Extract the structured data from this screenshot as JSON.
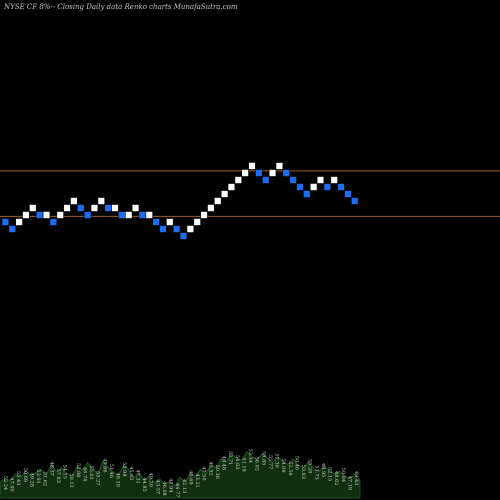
{
  "title": "NYSE CF 8%-- Closing Daily data  Renko  charts MunafaSutra.com",
  "colors": {
    "background": "#000000",
    "up_brick": "#ffffff",
    "down_brick": "#1e6cf0",
    "guide_line": "#a0601c",
    "volume_fill": "#0f2f0f",
    "volume_edge": "#2e6b2e",
    "label": "#d0d0d0"
  },
  "chart_data": {
    "type": "renko",
    "title": "NYSE CF 8%-- Closing Daily data  Renko  charts MunafaSutra.com",
    "brick_count": 52,
    "bricks": [
      {
        "dir": "down",
        "level": -2
      },
      {
        "dir": "down",
        "level": -3
      },
      {
        "dir": "up",
        "level": -2
      },
      {
        "dir": "up",
        "level": -1
      },
      {
        "dir": "up",
        "level": 0
      },
      {
        "dir": "down",
        "level": -1
      },
      {
        "dir": "up",
        "level": -1
      },
      {
        "dir": "down",
        "level": -2
      },
      {
        "dir": "up",
        "level": -1
      },
      {
        "dir": "up",
        "level": 0
      },
      {
        "dir": "up",
        "level": 1
      },
      {
        "dir": "down",
        "level": 0
      },
      {
        "dir": "down",
        "level": -1
      },
      {
        "dir": "up",
        "level": 0
      },
      {
        "dir": "up",
        "level": 1
      },
      {
        "dir": "down",
        "level": 0
      },
      {
        "dir": "up",
        "level": 0
      },
      {
        "dir": "down",
        "level": -1
      },
      {
        "dir": "up",
        "level": -1
      },
      {
        "dir": "up",
        "level": 0
      },
      {
        "dir": "down",
        "level": -1
      },
      {
        "dir": "up",
        "level": -1
      },
      {
        "dir": "down",
        "level": -2
      },
      {
        "dir": "down",
        "level": -3
      },
      {
        "dir": "up",
        "level": -2
      },
      {
        "dir": "down",
        "level": -3
      },
      {
        "dir": "down",
        "level": -4
      },
      {
        "dir": "up",
        "level": -3
      },
      {
        "dir": "up",
        "level": -2
      },
      {
        "dir": "up",
        "level": -1
      },
      {
        "dir": "up",
        "level": 0
      },
      {
        "dir": "up",
        "level": 1
      },
      {
        "dir": "up",
        "level": 2
      },
      {
        "dir": "up",
        "level": 3
      },
      {
        "dir": "up",
        "level": 4
      },
      {
        "dir": "up",
        "level": 5
      },
      {
        "dir": "up",
        "level": 6
      },
      {
        "dir": "down",
        "level": 5
      },
      {
        "dir": "down",
        "level": 4
      },
      {
        "dir": "up",
        "level": 5
      },
      {
        "dir": "up",
        "level": 6
      },
      {
        "dir": "down",
        "level": 5
      },
      {
        "dir": "down",
        "level": 4
      },
      {
        "dir": "down",
        "level": 3
      },
      {
        "dir": "down",
        "level": 2
      },
      {
        "dir": "up",
        "level": 3
      },
      {
        "dir": "up",
        "level": 4
      },
      {
        "dir": "down",
        "level": 3
      },
      {
        "dir": "up",
        "level": 4
      },
      {
        "dir": "down",
        "level": 3
      },
      {
        "dir": "down",
        "level": 2
      },
      {
        "dir": "down",
        "level": 1
      }
    ],
    "guide_levels": [
      5.3,
      -1.2
    ],
    "volume_profile": [
      20,
      24,
      22,
      30,
      26,
      34,
      28,
      32,
      36,
      29,
      42,
      33,
      38,
      31,
      27,
      40,
      35,
      44,
      37,
      30,
      46,
      39,
      33,
      28,
      41,
      36,
      25,
      32,
      22,
      28,
      19,
      24,
      17,
      21,
      15,
      26,
      20,
      31,
      27,
      36,
      30,
      42,
      38,
      49,
      45,
      55,
      50,
      47,
      58,
      52,
      48,
      55,
      50,
      44,
      52,
      46,
      42,
      49,
      41,
      38,
      45,
      37,
      33,
      40,
      35,
      30,
      34,
      28,
      24,
      30,
      22
    ],
    "volume_labels": [
      "52.24",
      "47.95",
      "55.43",
      "50.69",
      "49.28",
      "53.91",
      "51.62",
      "48.37",
      "57.83",
      "54.15",
      "50.12",
      "52.88",
      "46.74",
      "55.01",
      "53.27",
      "49.66",
      "51.46",
      "48.10",
      "50.98",
      "45.62",
      "47.31",
      "44.85",
      "49.20",
      "43.57",
      "46.08",
      "41.94",
      "44.77",
      "42.13",
      "40.69",
      "43.21",
      "47.50",
      "45.92",
      "50.36",
      "48.48",
      "52.71",
      "54.63",
      "51.19",
      "53.34",
      "56.02",
      "58.85",
      "55.77",
      "57.30",
      "54.09",
      "52.56",
      "50.40",
      "53.83",
      "55.28",
      "51.73",
      "49.95",
      "52.15",
      "48.62",
      "50.84",
      "47.19",
      "49.43"
    ]
  }
}
